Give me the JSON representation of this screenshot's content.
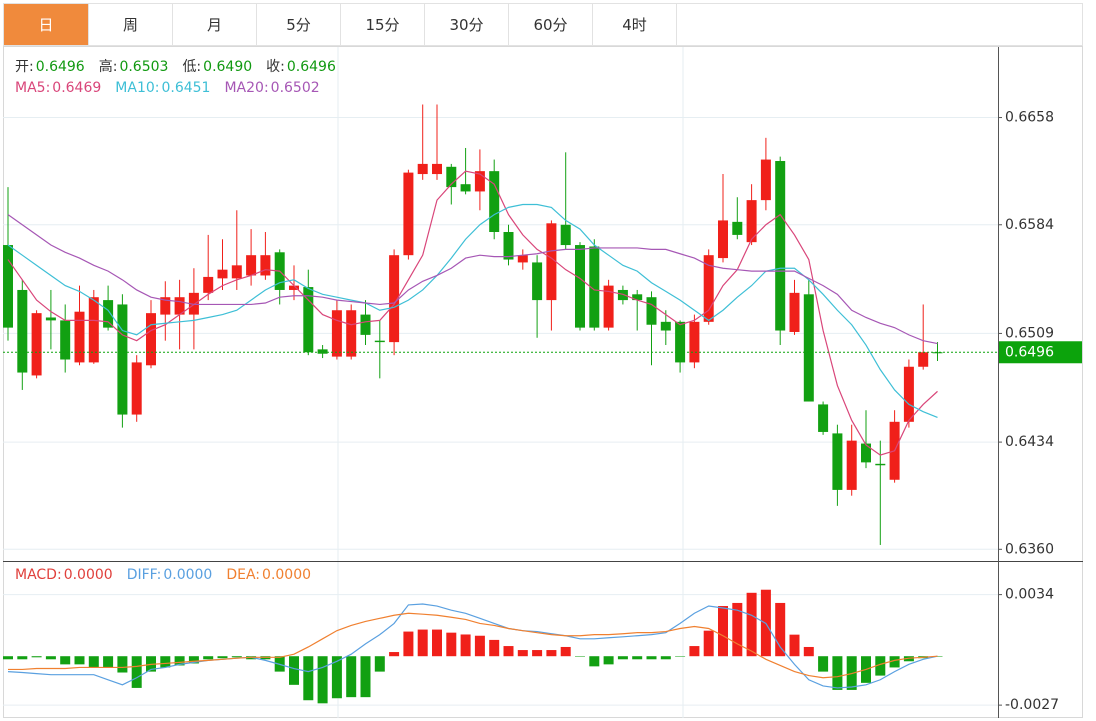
{
  "tabs": [
    "日",
    "周",
    "月",
    "5分",
    "15分",
    "30分",
    "60分",
    "4时"
  ],
  "active_tab": 0,
  "chart_data": [
    {
      "type": "candlestick",
      "info": [
        {
          "label": "开:",
          "value": "0.6496"
        },
        {
          "label": "高:",
          "value": "0.6503"
        },
        {
          "label": "低:",
          "value": "0.6490"
        },
        {
          "label": "收:",
          "value": "0.6496"
        }
      ],
      "info_label_color": "#333333",
      "info_value_color": "#119911",
      "legend": [
        {
          "label": "MA5:",
          "value": "0.6469",
          "color": "#d9467a"
        },
        {
          "label": "MA10:",
          "value": "0.6451",
          "color": "#3ebfd6"
        },
        {
          "label": "MA20:",
          "value": "0.6502",
          "color": "#a657b5"
        }
      ],
      "up_color": "#f0201a",
      "down_color": "#12a012",
      "open": [
        0.657,
        0.6539,
        0.648,
        0.652,
        0.6518,
        0.6489,
        0.6489,
        0.6532,
        0.6529,
        0.6453,
        0.6487,
        0.6522,
        0.6522,
        0.6522,
        0.6537,
        0.6547,
        0.6547,
        0.6549,
        0.6549,
        0.6565,
        0.6539,
        0.6541,
        0.6498,
        0.6493,
        0.6493,
        0.6522,
        0.6504,
        0.6503,
        0.6563,
        0.6619,
        0.6619,
        0.6624,
        0.6612,
        0.6607,
        0.6621,
        0.6579,
        0.6558,
        0.6558,
        0.6532,
        0.6584,
        0.657,
        0.6569,
        0.6513,
        0.6539,
        0.6536,
        0.6534,
        0.6517,
        0.6517,
        0.6489,
        0.6517,
        0.6561,
        0.6586,
        0.6572,
        0.6601,
        0.6628,
        0.651,
        0.6536,
        0.646,
        0.644,
        0.6401,
        0.6433,
        0.6419,
        0.6408,
        0.6448,
        0.6486,
        0.6496
      ],
      "high": [
        0.661,
        0.6546,
        0.6525,
        0.6539,
        0.6529,
        0.6542,
        0.6539,
        0.6542,
        0.6536,
        0.6494,
        0.6532,
        0.6545,
        0.6546,
        0.6554,
        0.6577,
        0.6574,
        0.6594,
        0.6581,
        0.6579,
        0.6567,
        0.6556,
        0.6553,
        0.6501,
        0.6532,
        0.6529,
        0.6532,
        0.6518,
        0.6567,
        0.6622,
        0.6667,
        0.6667,
        0.6626,
        0.6637,
        0.6636,
        0.6629,
        0.6584,
        0.6567,
        0.6563,
        0.6587,
        0.6634,
        0.6572,
        0.6574,
        0.6546,
        0.6542,
        0.6539,
        0.6538,
        0.6525,
        0.6518,
        0.6522,
        0.6567,
        0.6619,
        0.6603,
        0.6612,
        0.6644,
        0.6631,
        0.6546,
        0.6546,
        0.6462,
        0.6446,
        0.6446,
        0.6456,
        0.6435,
        0.6456,
        0.6491,
        0.6529,
        0.6503
      ],
      "low": [
        0.6504,
        0.647,
        0.6478,
        0.6498,
        0.6482,
        0.6487,
        0.6488,
        0.6511,
        0.6444,
        0.6448,
        0.6485,
        0.6504,
        0.6498,
        0.6498,
        0.6532,
        0.6539,
        0.6539,
        0.6542,
        0.6546,
        0.6529,
        0.6532,
        0.6494,
        0.6492,
        0.6491,
        0.6491,
        0.6501,
        0.6478,
        0.6494,
        0.656,
        0.6615,
        0.6615,
        0.6598,
        0.6605,
        0.6594,
        0.6574,
        0.6556,
        0.6553,
        0.6506,
        0.6511,
        0.6567,
        0.6511,
        0.6511,
        0.6511,
        0.6529,
        0.6511,
        0.6487,
        0.6501,
        0.6482,
        0.6485,
        0.6515,
        0.6558,
        0.6574,
        0.657,
        0.6594,
        0.6501,
        0.6508,
        0.6462,
        0.6439,
        0.639,
        0.6397,
        0.6416,
        0.6363,
        0.6406,
        0.6444,
        0.6484,
        0.649
      ],
      "close": [
        0.6513,
        0.6482,
        0.6523,
        0.6518,
        0.6491,
        0.6524,
        0.6534,
        0.6513,
        0.6453,
        0.6489,
        0.6523,
        0.6534,
        0.6534,
        0.6537,
        0.6548,
        0.6553,
        0.6556,
        0.6563,
        0.6563,
        0.6539,
        0.6542,
        0.6496,
        0.6495,
        0.6525,
        0.6525,
        0.6508,
        0.6503,
        0.6563,
        0.662,
        0.6626,
        0.6626,
        0.661,
        0.6607,
        0.6621,
        0.6579,
        0.656,
        0.6563,
        0.6532,
        0.6585,
        0.657,
        0.6513,
        0.6513,
        0.6542,
        0.6532,
        0.6532,
        0.6515,
        0.6511,
        0.6489,
        0.6517,
        0.6563,
        0.6587,
        0.6577,
        0.6601,
        0.6629,
        0.6511,
        0.6537,
        0.6462,
        0.6441,
        0.6401,
        0.6435,
        0.642,
        0.6418,
        0.6448,
        0.6486,
        0.6496,
        0.6496
      ],
      "series": [
        {
          "color": "#d9467a",
          "values": [
            0.656,
            0.6546,
            0.6532,
            0.6524,
            0.6518,
            0.6518,
            0.6518,
            0.6517,
            0.6508,
            0.6504,
            0.6511,
            0.6515,
            0.6522,
            0.6529,
            0.6536,
            0.6542,
            0.6546,
            0.6549,
            0.6553,
            0.6552,
            0.6542,
            0.6532,
            0.6522,
            0.6518,
            0.6515,
            0.6517,
            0.6518,
            0.6529,
            0.6546,
            0.6563,
            0.6601,
            0.6612,
            0.6621,
            0.6619,
            0.6612,
            0.6591,
            0.6577,
            0.6567,
            0.6561,
            0.6553,
            0.6547,
            0.6539,
            0.6538,
            0.6536,
            0.6532,
            0.6529,
            0.6522,
            0.6515,
            0.6518,
            0.6525,
            0.6542,
            0.6553,
            0.6574,
            0.6584,
            0.6591,
            0.6577,
            0.656,
            0.6511,
            0.6473,
            0.6449,
            0.6432,
            0.6425,
            0.6428,
            0.6449,
            0.646,
            0.6469
          ]
        },
        {
          "color": "#3ebfd6",
          "values": [
            0.657,
            0.6563,
            0.6556,
            0.6549,
            0.6542,
            0.6538,
            0.6532,
            0.6525,
            0.6511,
            0.6508,
            0.6515,
            0.6516,
            0.6517,
            0.6518,
            0.652,
            0.6522,
            0.6525,
            0.6532,
            0.6539,
            0.6544,
            0.6546,
            0.654,
            0.6536,
            0.6534,
            0.6532,
            0.653,
            0.6525,
            0.6527,
            0.6532,
            0.6539,
            0.6549,
            0.6561,
            0.6574,
            0.6584,
            0.6591,
            0.6596,
            0.6598,
            0.6598,
            0.6596,
            0.6587,
            0.6581,
            0.657,
            0.6563,
            0.6556,
            0.6552,
            0.6544,
            0.6538,
            0.6532,
            0.6525,
            0.6518,
            0.6525,
            0.6534,
            0.6542,
            0.6552,
            0.6554,
            0.6554,
            0.6546,
            0.6536,
            0.6525,
            0.6515,
            0.6501,
            0.6484,
            0.647,
            0.646,
            0.6455,
            0.6451
          ]
        },
        {
          "color": "#a657b5",
          "values": [
            0.6591,
            0.6584,
            0.6577,
            0.657,
            0.6565,
            0.6561,
            0.6556,
            0.6552,
            0.6546,
            0.6539,
            0.6534,
            0.6532,
            0.6531,
            0.6529,
            0.6529,
            0.6529,
            0.6529,
            0.6529,
            0.653,
            0.6534,
            0.6535,
            0.6535,
            0.6534,
            0.6532,
            0.6531,
            0.653,
            0.6529,
            0.653,
            0.6539,
            0.6545,
            0.6549,
            0.6554,
            0.6561,
            0.6563,
            0.6562,
            0.6562,
            0.6563,
            0.6564,
            0.6566,
            0.6567,
            0.6567,
            0.6568,
            0.6568,
            0.6568,
            0.6568,
            0.6567,
            0.6567,
            0.6564,
            0.6561,
            0.6556,
            0.6554,
            0.6553,
            0.6552,
            0.6552,
            0.6552,
            0.6552,
            0.6547,
            0.6542,
            0.6536,
            0.6525,
            0.652,
            0.6516,
            0.6513,
            0.6508,
            0.6504,
            0.6502
          ]
        }
      ],
      "last_price": 0.6496,
      "last_price_color": "#0ca30c",
      "ylim": [
        0.6354,
        0.6706
      ],
      "yticks": [
        0.6658,
        0.6584,
        0.6509,
        0.6434,
        {
          "value": 0.636,
          "label": "0.6360"
        }
      ],
      "grid": true
    },
    {
      "type": "macd",
      "legend": [
        {
          "label": "MACD:",
          "value": "0.0000",
          "color": "#e0403c"
        },
        {
          "label": "DIFF:",
          "value": "0.0000",
          "color": "#5aa0e0"
        },
        {
          "label": "DEA:",
          "value": "0.0000",
          "color": "#f08030"
        }
      ],
      "up_color": "#f0201a",
      "down_color": "#12a012",
      "values": [
        -0.00017,
        -0.00017,
        -6e-05,
        -0.00017,
        -0.00045,
        -0.00045,
        -0.00062,
        -0.00062,
        -0.0009,
        -0.00175,
        -0.00085,
        -0.00062,
        -0.00051,
        -0.0004,
        -0.00017,
        -0.00011,
        -6e-05,
        -0.00017,
        -0.00017,
        -0.00085,
        -0.00158,
        -0.00243,
        -0.0026,
        -0.00232,
        -0.00226,
        -0.00226,
        -0.00085,
        0.00023,
        0.00136,
        0.00147,
        0.00147,
        0.0013,
        0.0012,
        0.00113,
        0.0009,
        0.00056,
        0.00034,
        0.00034,
        0.00034,
        0.00051,
        0,
        -0.00056,
        -0.00045,
        -0.00017,
        -0.00017,
        -0.00017,
        -0.00017,
        0,
        0.00056,
        0.00141,
        0.00277,
        0.00294,
        0.0035,
        0.00367,
        0.00294,
        0.00119,
        0.00051,
        -0.00085,
        -0.00186,
        -0.00186,
        -0.00147,
        -0.00107,
        -0.00062,
        -0.00028,
        -0.00011,
        0
      ],
      "series": [
        {
          "color": "#5aa0e0",
          "values": [
            -0.00085,
            -0.0009,
            -0.00096,
            -0.00102,
            -0.00102,
            -0.00102,
            -0.00102,
            -0.0013,
            -0.00158,
            -0.00119,
            -0.00073,
            -0.00062,
            -0.00045,
            -0.00034,
            -0.00023,
            -0.00017,
            -0.00011,
            -6e-05,
            -0.00023,
            -0.00045,
            -0.00068,
            -0.00085,
            -0.00062,
            -0.00028,
            0.00011,
            0.00068,
            0.00119,
            0.00181,
            0.00283,
            0.00288,
            0.00277,
            0.00254,
            0.00237,
            0.00209,
            0.00181,
            0.00153,
            0.00141,
            0.00136,
            0.00124,
            0.00113,
            0.00096,
            0.00096,
            0.00102,
            0.00107,
            0.00113,
            0.00119,
            0.0013,
            0.00181,
            0.00237,
            0.00277,
            0.00266,
            0.00254,
            0.00226,
            0.00181,
            0.00051,
            -0.00045,
            -0.0013,
            -0.00164,
            -0.00175,
            -0.0017,
            -0.00158,
            -0.0013,
            -0.00085,
            -0.00045,
            -0.00017,
            0
          ]
        },
        {
          "color": "#f08030",
          "values": [
            -0.00073,
            -0.00073,
            -0.00068,
            -0.00068,
            -0.00068,
            -0.00062,
            -0.00062,
            -0.00062,
            -0.00062,
            -0.00056,
            -0.00045,
            -0.0004,
            -0.00034,
            -0.00028,
            -0.00023,
            -0.00017,
            -0.00011,
            -6e-05,
            -6e-05,
            -6e-05,
            0.00011,
            0.00051,
            0.00096,
            0.00141,
            0.0017,
            0.00192,
            0.00209,
            0.00226,
            0.00237,
            0.00232,
            0.00226,
            0.00215,
            0.00203,
            0.00181,
            0.0017,
            0.00153,
            0.00141,
            0.0013,
            0.00119,
            0.00113,
            0.00113,
            0.00119,
            0.00119,
            0.00124,
            0.0013,
            0.0013,
            0.00136,
            0.00153,
            0.00164,
            0.00153,
            0.00113,
            0.00068,
            0.00028,
            -0.00017,
            -0.00051,
            -0.00085,
            -0.00107,
            -0.00119,
            -0.00113,
            -0.00096,
            -0.00073,
            -0.00045,
            -0.00023,
            -0.00011,
            -6e-05,
            0
          ]
        }
      ],
      "ylim": [
        -0.0033,
        0.0052
      ],
      "yticks": [
        0.0034,
        -0.0027
      ],
      "grid": true
    }
  ]
}
